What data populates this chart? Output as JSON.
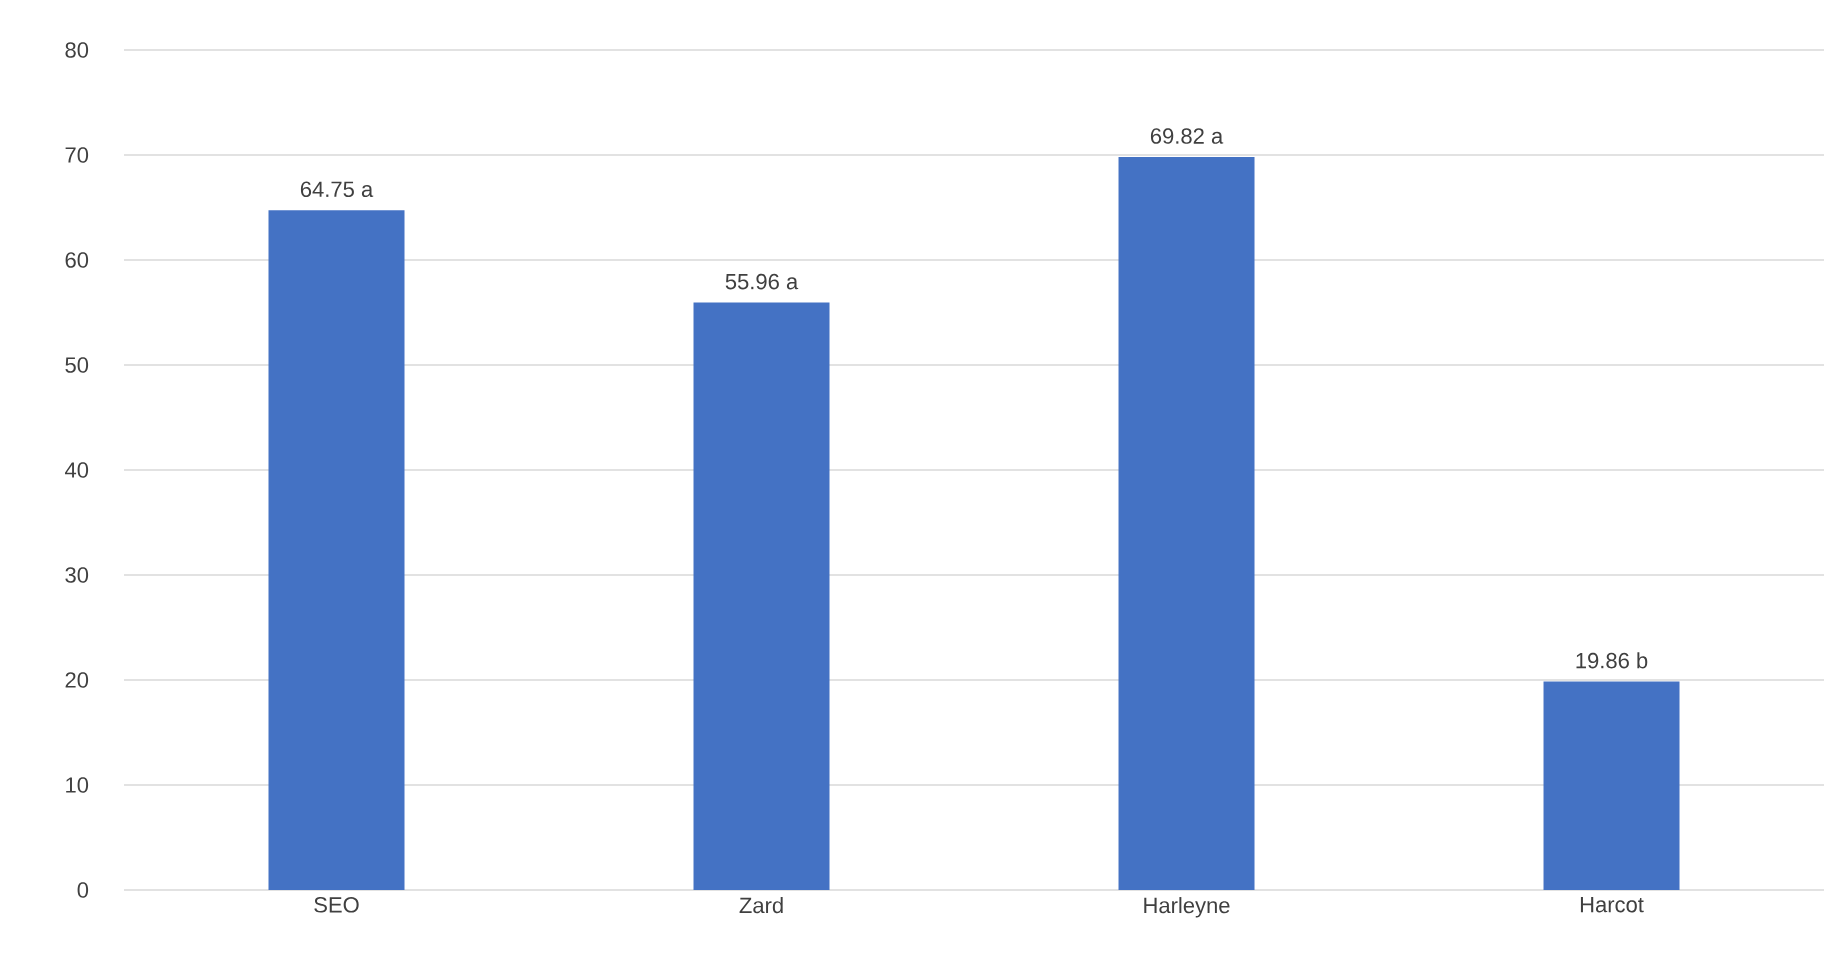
{
  "chart_data": {
    "type": "bar",
    "categories": [
      "SEO",
      "Zard",
      "Harleyne",
      "Harcot"
    ],
    "values": [
      64.75,
      55.96,
      69.82,
      19.86
    ],
    "value_labels": [
      "64.75 a",
      "55.96 a",
      "69.82 a",
      "19.86 b"
    ],
    "color": "#4472c4",
    "ylim": [
      0,
      80
    ],
    "yticks": [
      0,
      10,
      20,
      30,
      40,
      50,
      60,
      70,
      80
    ],
    "grid": "y"
  }
}
